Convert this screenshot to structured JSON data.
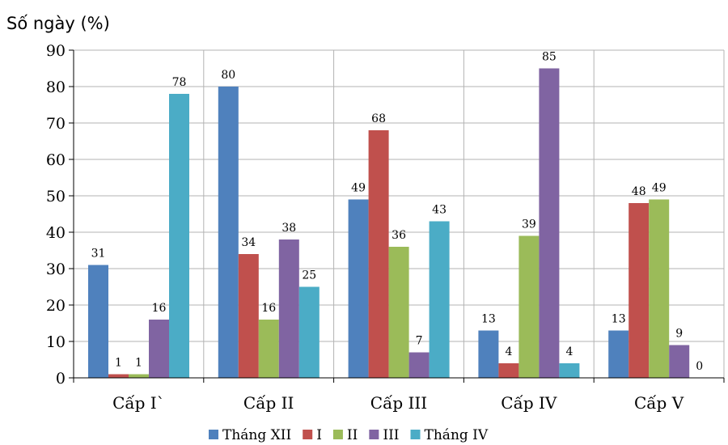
{
  "chart_data": {
    "type": "bar",
    "ylabel": "Số ngày (%)",
    "ylim": [
      0,
      90
    ],
    "yticks": [
      0,
      10,
      20,
      30,
      40,
      50,
      60,
      70,
      80,
      90
    ],
    "categories": [
      "Cấp I`",
      "Cấp II",
      "Cấp III",
      "Cấp IV",
      "Cấp V"
    ],
    "series": [
      {
        "name": "Tháng XII",
        "color": "#4F81BD",
        "values": [
          31,
          80,
          49,
          13,
          13
        ]
      },
      {
        "name": "I",
        "color": "#C0504D",
        "values": [
          1,
          34,
          68,
          4,
          48
        ]
      },
      {
        "name": "II",
        "color": "#9BBB59",
        "values": [
          1,
          16,
          36,
          39,
          49
        ]
      },
      {
        "name": "III",
        "color": "#8064A2",
        "values": [
          16,
          38,
          7,
          85,
          9
        ]
      },
      {
        "name": "Tháng IV",
        "color": "#4BACC6",
        "values": [
          78,
          25,
          43,
          4,
          0
        ]
      }
    ],
    "grid": true,
    "legend": "bottom"
  }
}
